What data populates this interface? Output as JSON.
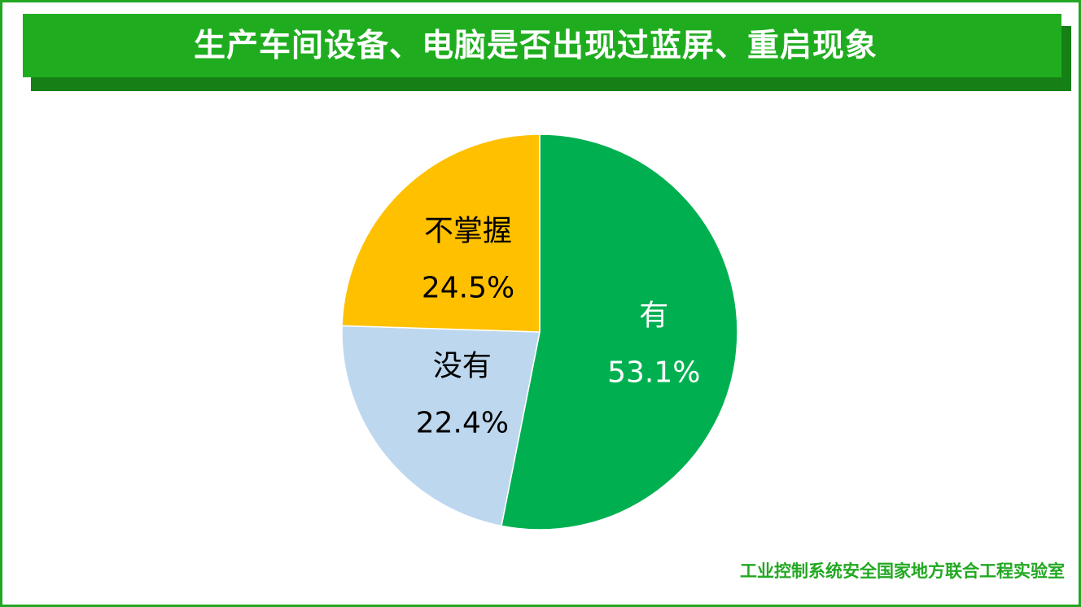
{
  "header": {
    "title": "生产车间设备、电脑是否出现过蓝屏、重启现象"
  },
  "chart_data": {
    "type": "pie",
    "title": "生产车间设备、电脑是否出现过蓝屏、重启现象",
    "categories": [
      "有",
      "没有",
      "不掌握"
    ],
    "values": [
      53.1,
      22.4,
      24.5
    ],
    "value_labels": [
      "53.1%",
      "22.4%",
      "24.5%"
    ],
    "colors": [
      "#00b050",
      "#bdd7ee",
      "#ffc000"
    ],
    "label_colors": [
      "#ffffff",
      "#000000",
      "#000000"
    ],
    "start_angle": "12 o'clock, clockwise",
    "legend": "none"
  },
  "footer": {
    "credit": "工业控制系统安全国家地方联合工程实验室"
  },
  "colors": {
    "banner": "#1fad1f",
    "banner_shadow": "#168016",
    "frame": "#22a822",
    "footer_text": "#22a822"
  }
}
